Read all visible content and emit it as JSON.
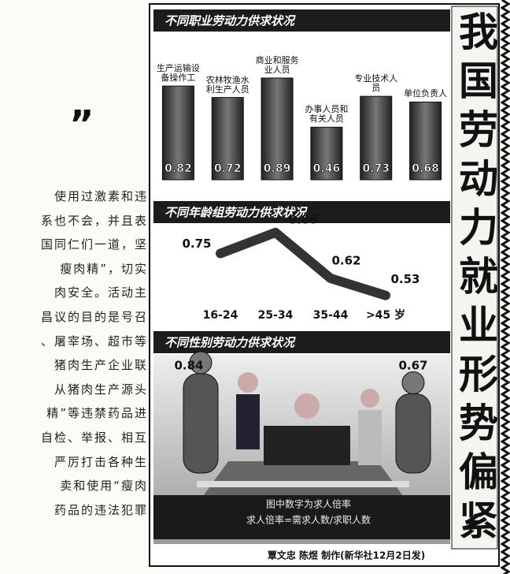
{
  "article": {
    "quote_mark": "”",
    "lines": [
      "使用过激素和违",
      "系也不会，并且表",
      "国同仁们一道，坚",
      "瘦肉精”，切实",
      "肉安全。活动主",
      "昌议的目的是号召",
      "、屠宰场、超市等",
      "猪肉生产企业联",
      "从猪肉生产源头",
      "精”等违禁药品进",
      "自检、举报、相互",
      "严厉打击各种生",
      "卖和使用“瘦肉",
      "药品的违法犯罪"
    ]
  },
  "infographic": {
    "title": "我国劳动力就业形势偏紧",
    "note_lines": [
      "图中数字为求人倍率",
      "求人倍率=需求人数/求职人数"
    ],
    "credit": "覃文忠 陈煜 制作(新华社12月2日发)"
  },
  "chart_data": [
    {
      "type": "bar",
      "title": "不同职业劳动力供求状况",
      "categories": [
        "生产运输设备操作工",
        "农林牧渔水利生产人员",
        "商业和服务业人员",
        "办事人员和有关人员",
        "专业技术人员",
        "单位负责人"
      ],
      "values": [
        0.82,
        0.72,
        0.89,
        0.46,
        0.73,
        0.68
      ],
      "color": "#555555"
    },
    {
      "type": "line",
      "title": "不同年龄组劳动力供求状况",
      "categories": [
        "16-24",
        "25-34",
        "35-44",
        ">45 岁"
      ],
      "values": [
        0.75,
        0.86,
        0.62,
        0.53
      ],
      "color": "#333333"
    },
    {
      "type": "pictorial",
      "title": "不同性别劳动力供求状况",
      "categories": [
        null,
        null
      ],
      "values": [
        0.84,
        0.67
      ],
      "color": "#444444"
    }
  ]
}
